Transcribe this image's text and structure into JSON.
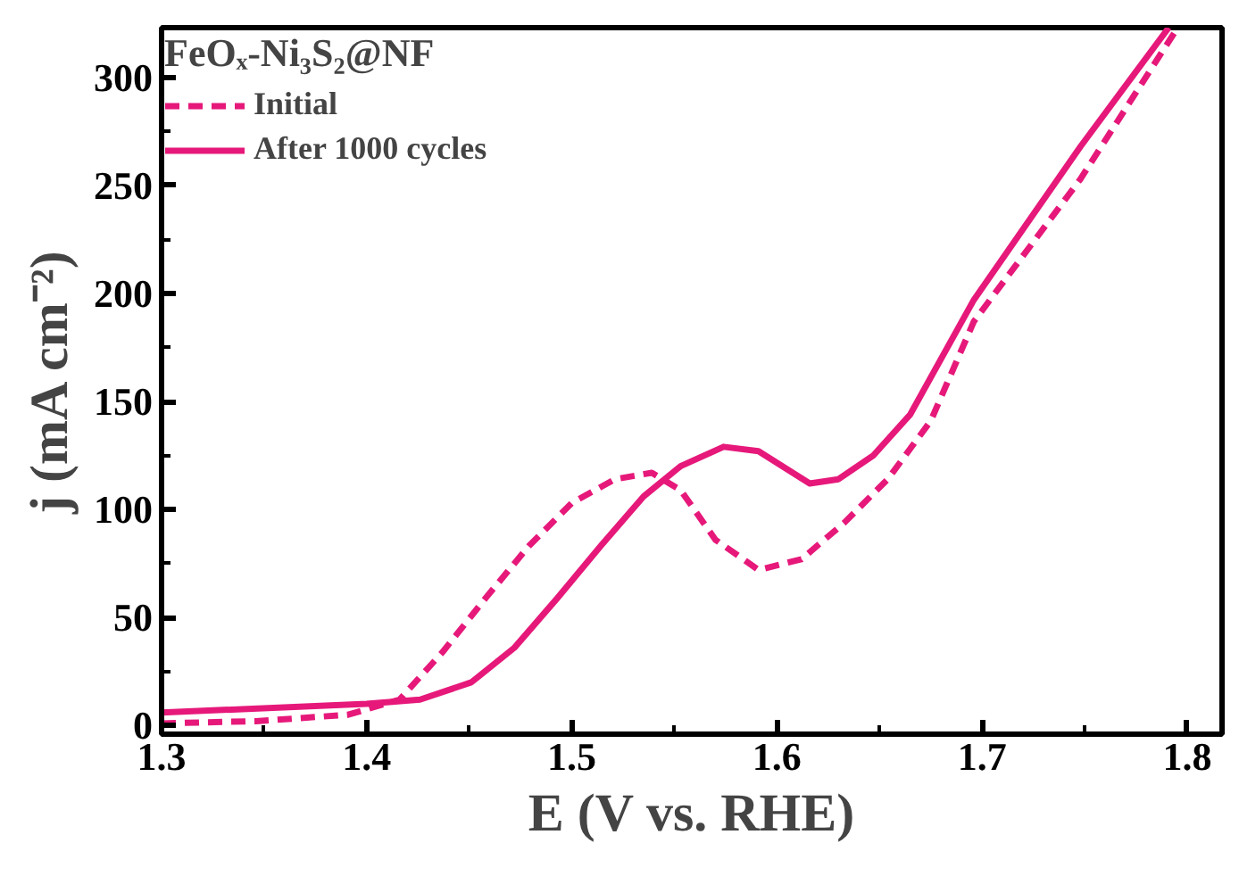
{
  "chart_data": {
    "type": "line",
    "xlabel": "E (V vs. RHE)",
    "ylabel": "j (mA cm⁻²)",
    "legend_title": "FeOₓ-Ni₃S₂@NF",
    "xlim": [
      1.3,
      1.817
    ],
    "ylim": [
      -4,
      323
    ],
    "xticks": [
      1.3,
      1.4,
      1.5,
      1.6,
      1.7,
      1.8
    ],
    "yticks": [
      0,
      50,
      100,
      150,
      200,
      250,
      300
    ],
    "grid": false,
    "legend": "top left",
    "series": [
      {
        "name": "Initial",
        "color": "#e6197a",
        "line_style": "dashed",
        "x": [
          1.3,
          1.346,
          1.391,
          1.416,
          1.437,
          1.458,
          1.479,
          1.5,
          1.521,
          1.539,
          1.553,
          1.57,
          1.591,
          1.612,
          1.633,
          1.654,
          1.675,
          1.696,
          1.748,
          1.794
        ],
        "values": [
          1,
          2,
          5,
          12,
          34,
          59,
          83,
          103,
          114,
          117,
          109,
          86,
          72,
          77,
          94,
          114,
          141,
          187,
          253,
          321
        ]
      },
      {
        "name": "After 1000 cycles",
        "color": "#e6197a",
        "line_style": "solid",
        "x": [
          1.3,
          1.4,
          1.426,
          1.451,
          1.472,
          1.493,
          1.514,
          1.535,
          1.553,
          1.574,
          1.591,
          1.616,
          1.63,
          1.647,
          1.665,
          1.696,
          1.748,
          1.791
        ],
        "values": [
          6,
          10,
          12,
          20,
          36,
          59,
          83,
          106,
          120,
          129,
          127,
          112,
          114,
          125,
          144,
          197,
          268,
          323
        ]
      }
    ]
  }
}
